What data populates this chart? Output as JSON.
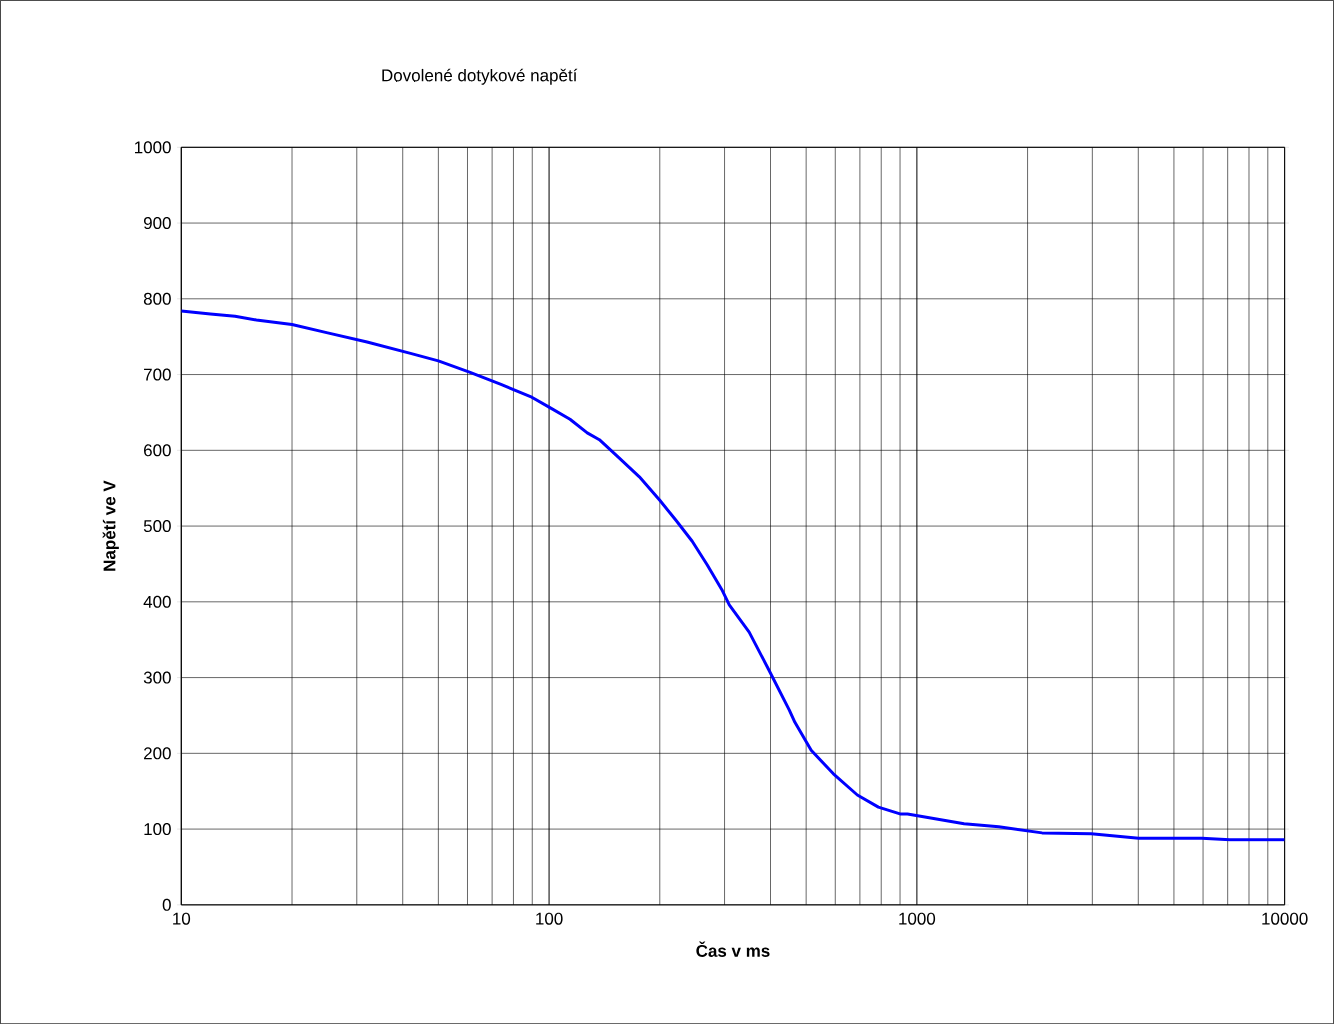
{
  "chart_data": {
    "type": "line",
    "title": "Dovolené dotykové napětí",
    "xlabel": "Čas v ms",
    "ylabel": "Napětí ve V",
    "log": "x",
    "grid": true,
    "marker": "none",
    "line_style": "solid",
    "xlim": [
      10,
      10000
    ],
    "xticks": [
      10,
      100,
      1000,
      10000
    ],
    "ylim": [
      0,
      1000
    ],
    "yticks": [
      0,
      100,
      200,
      300,
      400,
      500,
      600,
      700,
      800,
      900,
      1000
    ],
    "series": [
      {
        "color": "#0000ff",
        "x": [
          10,
          12,
          14,
          16,
          20,
          25,
          32,
          42,
          50,
          61,
          74,
          89,
          100,
          114,
          127,
          137,
          155,
          176,
          200,
          221,
          245,
          269,
          295,
          309,
          350,
          396,
          450,
          466,
          516,
          593,
          689,
          786,
          900,
          943,
          1344,
          1670,
          2190,
          2980,
          4010,
          5950,
          7100,
          10000
        ],
        "values": [
          784,
          780,
          777,
          772,
          766,
          755,
          743,
          728,
          718,
          703,
          687,
          671,
          657,
          641,
          623,
          614,
          590,
          565,
          534,
          508,
          480,
          449,
          416,
          396,
          360,
          310,
          257,
          241,
          204,
          173,
          145,
          129,
          120,
          120,
          107,
          103,
          95,
          94,
          88,
          88,
          86,
          86
        ]
      }
    ]
  }
}
